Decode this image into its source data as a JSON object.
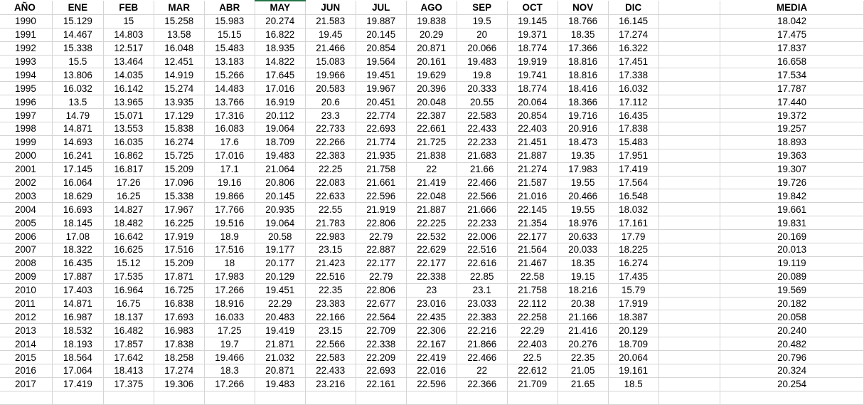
{
  "headers": [
    "AÑO",
    "ENE",
    "FEB",
    "MAR",
    "ABR",
    "MAY",
    "JUN",
    "JUL",
    "AGO",
    "SEP",
    "OCT",
    "NOV",
    "DIC",
    "",
    "MEDIA"
  ],
  "rows": [
    [
      "1990",
      "15.129",
      "15",
      "15.258",
      "15.983",
      "20.274",
      "21.583",
      "19.887",
      "19.838",
      "19.5",
      "19.145",
      "18.766",
      "16.145",
      "",
      "18.042"
    ],
    [
      "1991",
      "14.467",
      "14.803",
      "13.58",
      "15.15",
      "16.822",
      "19.45",
      "20.145",
      "20.29",
      "20",
      "19.371",
      "18.35",
      "17.274",
      "",
      "17.475"
    ],
    [
      "1992",
      "15.338",
      "12.517",
      "16.048",
      "15.483",
      "18.935",
      "21.466",
      "20.854",
      "20.871",
      "20.066",
      "18.774",
      "17.366",
      "16.322",
      "",
      "17.837"
    ],
    [
      "1993",
      "15.5",
      "13.464",
      "12.451",
      "13.183",
      "14.822",
      "15.083",
      "19.564",
      "20.161",
      "19.483",
      "19.919",
      "18.816",
      "17.451",
      "",
      "16.658"
    ],
    [
      "1994",
      "13.806",
      "14.035",
      "14.919",
      "15.266",
      "17.645",
      "19.966",
      "19.451",
      "19.629",
      "19.8",
      "19.741",
      "18.816",
      "17.338",
      "",
      "17.534"
    ],
    [
      "1995",
      "16.032",
      "16.142",
      "15.274",
      "14.483",
      "17.016",
      "20.583",
      "19.967",
      "20.396",
      "20.333",
      "18.774",
      "18.416",
      "16.032",
      "",
      "17.787"
    ],
    [
      "1996",
      "13.5",
      "13.965",
      "13.935",
      "13.766",
      "16.919",
      "20.6",
      "20.451",
      "20.048",
      "20.55",
      "20.064",
      "18.366",
      "17.112",
      "",
      "17.440"
    ],
    [
      "1997",
      "14.79",
      "15.071",
      "17.129",
      "17.316",
      "20.112",
      "23.3",
      "22.774",
      "22.387",
      "22.583",
      "20.854",
      "19.716",
      "16.435",
      "",
      "19.372"
    ],
    [
      "1998",
      "14.871",
      "13.553",
      "15.838",
      "16.083",
      "19.064",
      "22.733",
      "22.693",
      "22.661",
      "22.433",
      "22.403",
      "20.916",
      "17.838",
      "",
      "19.257"
    ],
    [
      "1999",
      "14.693",
      "16.035",
      "16.274",
      "17.6",
      "18.709",
      "22.266",
      "21.774",
      "21.725",
      "22.233",
      "21.451",
      "18.473",
      "15.483",
      "",
      "18.893"
    ],
    [
      "2000",
      "16.241",
      "16.862",
      "15.725",
      "17.016",
      "19.483",
      "22.383",
      "21.935",
      "21.838",
      "21.683",
      "21.887",
      "19.35",
      "17.951",
      "",
      "19.363"
    ],
    [
      "2001",
      "17.145",
      "16.817",
      "15.209",
      "17.1",
      "21.064",
      "22.25",
      "21.758",
      "22",
      "21.66",
      "21.274",
      "17.983",
      "17.419",
      "",
      "19.307"
    ],
    [
      "2002",
      "16.064",
      "17.26",
      "17.096",
      "19.16",
      "20.806",
      "22.083",
      "21.661",
      "21.419",
      "22.466",
      "21.587",
      "19.55",
      "17.564",
      "",
      "19.726"
    ],
    [
      "2003",
      "18.629",
      "16.25",
      "15.338",
      "19.866",
      "20.145",
      "22.633",
      "22.596",
      "22.048",
      "22.566",
      "21.016",
      "20.466",
      "16.548",
      "",
      "19.842"
    ],
    [
      "2004",
      "16.693",
      "14.827",
      "17.967",
      "17.766",
      "20.935",
      "22.55",
      "21.919",
      "21.887",
      "21.666",
      "22.145",
      "19.55",
      "18.032",
      "",
      "19.661"
    ],
    [
      "2005",
      "18.145",
      "18.482",
      "16.225",
      "19.516",
      "19.064",
      "21.783",
      "22.806",
      "22.225",
      "22.233",
      "21.354",
      "18.976",
      "17.161",
      "",
      "19.831"
    ],
    [
      "2006",
      "17.08",
      "16.642",
      "17.919",
      "18.9",
      "20.58",
      "22.983",
      "22.79",
      "22.532",
      "22.006",
      "22.177",
      "20.633",
      "17.79",
      "",
      "20.169"
    ],
    [
      "2007",
      "18.322",
      "16.625",
      "17.516",
      "17.516",
      "19.177",
      "23.15",
      "22.887",
      "22.629",
      "22.516",
      "21.564",
      "20.033",
      "18.225",
      "",
      "20.013"
    ],
    [
      "2008",
      "16.435",
      "15.12",
      "15.209",
      "18",
      "20.177",
      "21.423",
      "22.177",
      "22.177",
      "22.616",
      "21.467",
      "18.35",
      "16.274",
      "",
      "19.119"
    ],
    [
      "2009",
      "17.887",
      "17.535",
      "17.871",
      "17.983",
      "20.129",
      "22.516",
      "22.79",
      "22.338",
      "22.85",
      "22.58",
      "19.15",
      "17.435",
      "",
      "20.089"
    ],
    [
      "2010",
      "17.403",
      "16.964",
      "16.725",
      "17.266",
      "19.451",
      "22.35",
      "22.806",
      "23",
      "23.1",
      "21.758",
      "18.216",
      "15.79",
      "",
      "19.569"
    ],
    [
      "2011",
      "14.871",
      "16.75",
      "16.838",
      "18.916",
      "22.29",
      "23.383",
      "22.677",
      "23.016",
      "23.033",
      "22.112",
      "20.38",
      "17.919",
      "",
      "20.182"
    ],
    [
      "2012",
      "16.987",
      "18.137",
      "17.693",
      "16.033",
      "20.483",
      "22.166",
      "22.564",
      "22.435",
      "22.383",
      "22.258",
      "21.166",
      "18.387",
      "",
      "20.058"
    ],
    [
      "2013",
      "18.532",
      "16.482",
      "16.983",
      "17.25",
      "19.419",
      "23.15",
      "22.709",
      "22.306",
      "22.216",
      "22.29",
      "21.416",
      "20.129",
      "",
      "20.240"
    ],
    [
      "2014",
      "18.193",
      "17.857",
      "17.838",
      "19.7",
      "21.871",
      "22.566",
      "22.338",
      "22.167",
      "21.866",
      "22.403",
      "20.276",
      "18.709",
      "",
      "20.482"
    ],
    [
      "2015",
      "18.564",
      "17.642",
      "18.258",
      "19.466",
      "21.032",
      "22.583",
      "22.209",
      "22.419",
      "22.466",
      "22.5",
      "22.35",
      "20.064",
      "",
      "20.796"
    ],
    [
      "2016",
      "17.064",
      "18.413",
      "17.274",
      "18.3",
      "20.871",
      "22.433",
      "22.693",
      "22.016",
      "22",
      "22.612",
      "21.05",
      "19.161",
      "",
      "20.324"
    ],
    [
      "2017",
      "17.419",
      "17.375",
      "19.306",
      "17.266",
      "19.483",
      "23.216",
      "22.161",
      "22.596",
      "22.366",
      "21.709",
      "21.65",
      "18.5",
      "",
      "20.254"
    ]
  ],
  "colors": {
    "grid": "#d4d4d4",
    "active_column_marker": "#217346"
  }
}
